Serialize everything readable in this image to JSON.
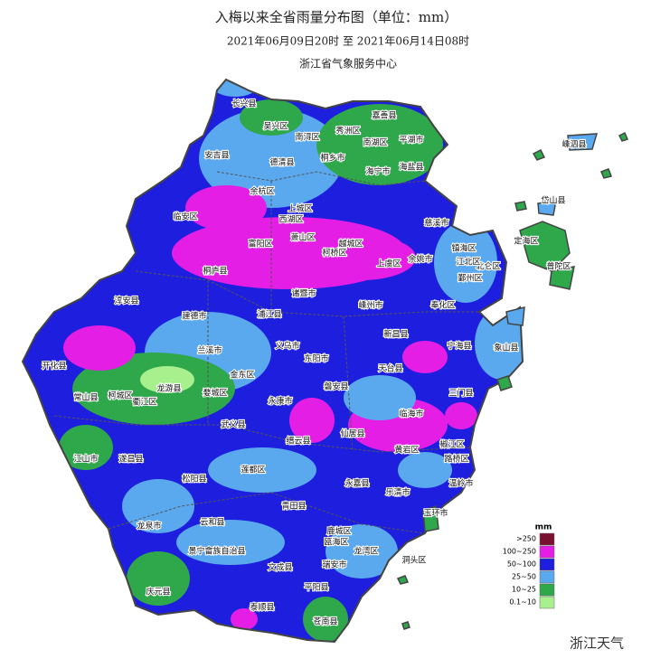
{
  "header": {
    "title": "入梅以来全省雨量分布图（单位：mm）",
    "period": "2021年06月09日20时  至  2021年06月14日08时",
    "agency": "浙江省气象服务中心"
  },
  "legend": {
    "unit": "mm",
    "items": [
      {
        "label": ">250",
        "color": "#7a1030"
      },
      {
        "label": "100~250",
        "color": "#e41ee4"
      },
      {
        "label": "50~100",
        "color": "#1e1ede"
      },
      {
        "label": "25~50",
        "color": "#5aa9ef"
      },
      {
        "label": "10~25",
        "color": "#2ea84a"
      },
      {
        "label": "0.1~10",
        "color": "#a8ef8e"
      }
    ]
  },
  "places": [
    "长兴县",
    "吴兴区",
    "南浔区",
    "嘉善县",
    "秀洲区",
    "南湖区",
    "平湖市",
    "安吉县",
    "德清县",
    "桐乡市",
    "海宁市",
    "海盐县",
    "嵊泗县",
    "岱山县",
    "定海区",
    "普陀区",
    "北仑区",
    "镇海区",
    "江北区",
    "鄞州区",
    "余杭区",
    "临安区",
    "西湖区",
    "上城区",
    "富阳区",
    "萧山区",
    "柯桥区",
    "越城区",
    "上虞区",
    "余姚市",
    "慈溪市",
    "奉化区",
    "桐庐县",
    "诸暨市",
    "嵊州市",
    "新昌县",
    "宁海县",
    "象山县",
    "淳安县",
    "建德市",
    "浦江县",
    "义乌市",
    "东阳市",
    "兰溪市",
    "金东区",
    "婺城区",
    "磐安县",
    "天台县",
    "三门县",
    "开化县",
    "常山县",
    "柯城区",
    "衢江区",
    "龙游县",
    "武义县",
    "永康市",
    "缙云县",
    "仙居县",
    "临海市",
    "黄岩区",
    "椒江区",
    "路桥区",
    "温岭市",
    "江山市",
    "遂昌县",
    "松阳县",
    "莲都区",
    "青田县",
    "永嘉县",
    "乐清市",
    "玉环市",
    "龙泉市",
    "云和县",
    "景宁畲族自治县",
    "鹿城区",
    "瓯海区",
    "龙湾区",
    "洞头区",
    "文成县",
    "瑞安市",
    "平阳县",
    "庆元县",
    "泰顺县",
    "苍南县"
  ],
  "watermark": "浙江天气"
}
